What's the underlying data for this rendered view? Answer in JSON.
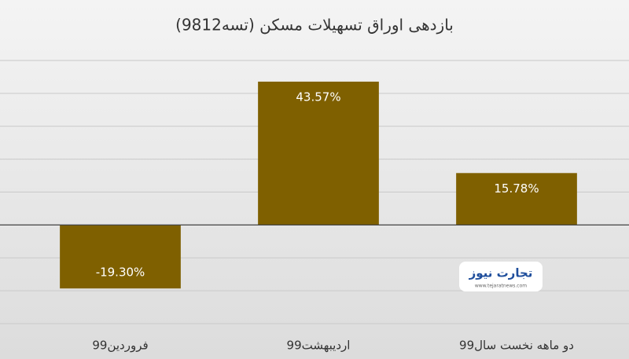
{
  "chart_data": {
    "type": "bar",
    "title": "بازدهی اوراق تسهیلات مسکن (تسه9812)",
    "categories": [
      "فروردین99",
      "اردیبهشت99",
      "دو ماهه نخست سال99"
    ],
    "values": [
      -19.3,
      43.57,
      15.78
    ],
    "value_labels": [
      "-19.30%",
      "43.57%",
      "15.78%"
    ],
    "color": "#7f6000",
    "ylim": [
      -30,
      50
    ],
    "yticks": [
      -30,
      -20,
      -10,
      0,
      10,
      20,
      30,
      40,
      50
    ],
    "grid": true,
    "watermark": {
      "name": "تجارت نیوز",
      "url": "www.tejaratnews.com"
    }
  }
}
